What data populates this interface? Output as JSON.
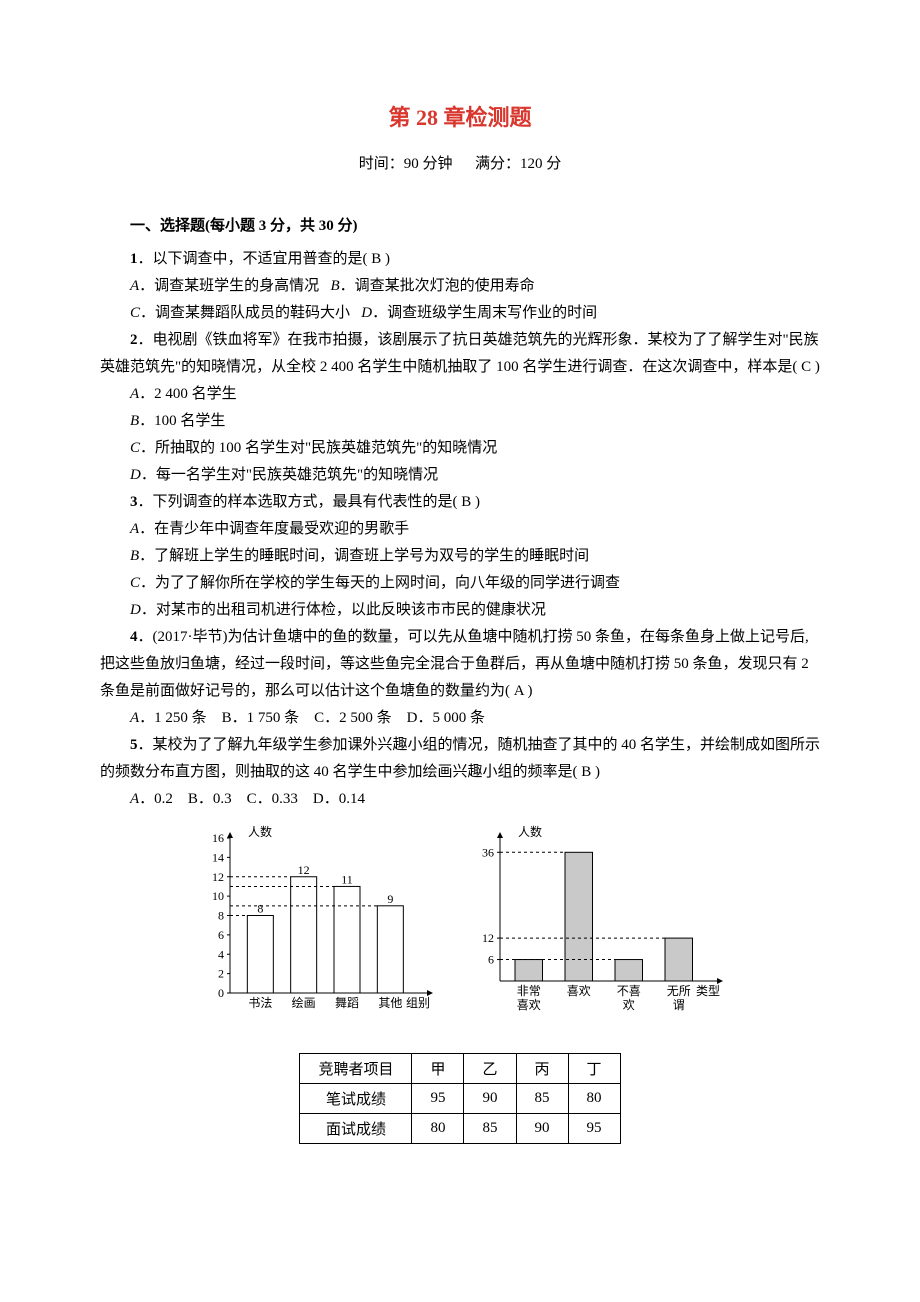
{
  "title": {
    "text": "第 28 章检测题",
    "color": "#d9362e"
  },
  "meta": {
    "time_label": "时间：",
    "time_value": "90 分钟",
    "score_label": "满分：",
    "score_value": "120 分"
  },
  "section1": {
    "header": "一、选择题(每小题 3 分，共 30 分)"
  },
  "q1": {
    "num": "1",
    "text": "．以下调查中，不适宜用普查的是( B )",
    "optA": "．调查某班学生的身高情况",
    "optB": "．调查某批次灯泡的使用寿命",
    "optC": "．调查某舞蹈队成员的鞋码大小",
    "optD": "．调查班级学生周末写作业的时间"
  },
  "q2": {
    "num": "2",
    "text": "．电视剧《铁血将军》在我市拍摄，该剧展示了抗日英雄范筑先的光辉形象．某校为了了解学生对\"民族英雄范筑先\"的知晓情况，从全校 2 400 名学生中随机抽取了 100 名学生进行调查．在这次调查中，样本是( C )",
    "optA": "．2 400 名学生",
    "optB": "．100 名学生",
    "optC": "．所抽取的 100 名学生对\"民族英雄范筑先\"的知晓情况",
    "optD": "．每一名学生对\"民族英雄范筑先\"的知晓情况"
  },
  "q3": {
    "num": "3",
    "text": "．下列调查的样本选取方式，最具有代表性的是( B )",
    "optA": "．在青少年中调查年度最受欢迎的男歌手",
    "optB": "．了解班上学生的睡眠时间，调查班上学号为双号的学生的睡眠时间",
    "optC": "．为了了解你所在学校的学生每天的上网时间，向八年级的同学进行调查",
    "optD": "．对某市的出租司机进行体检，以此反映该市市民的健康状况"
  },
  "q4": {
    "num": "4",
    "text": "．(2017·毕节)为估计鱼塘中的鱼的数量，可以先从鱼塘中随机打捞 50 条鱼，在每条鱼身上做上记号后,把这些鱼放归鱼塘，经过一段时间，等这些鱼完全混合于鱼群后，再从鱼塘中随机打捞 50 条鱼，发现只有 2 条鱼是前面做好记号的，那么可以估计这个鱼塘鱼的数量约为( A )",
    "opts": "．1 250 条　B．1 750 条　C．2 500 条　D．5 000 条"
  },
  "q5": {
    "num": "5",
    "text": "．某校为了了解九年级学生参加课外兴趣小组的情况，随机抽查了其中的 40 名学生，并绘制成如图所示的频数分布直方图，则抽取的这 40 名学生中参加绘画兴趣小组的频率是( B )",
    "opts": "．0.2　B．0.3　C．0.33　D．0.14"
  },
  "chart1": {
    "type": "bar",
    "ylabel": "人数",
    "xlabel": "组别",
    "ymax": 16,
    "yticks": [
      0,
      2,
      4,
      6,
      8,
      10,
      12,
      14,
      16
    ],
    "categories": [
      "书法",
      "绘画",
      "舞蹈",
      "其他"
    ],
    "values": [
      8,
      12,
      11,
      9
    ],
    "bar_fill": "#ffffff",
    "bar_stroke": "#000000",
    "axis_color": "#000000",
    "dash_color": "#000000",
    "font_size": 12
  },
  "chart2": {
    "type": "bar",
    "ylabel": "人数",
    "xlabel": "类型",
    "yticks_shown": [
      6,
      12,
      36
    ],
    "categories": [
      "非常喜欢",
      "喜欢",
      "不喜欢",
      "无所谓"
    ],
    "values": [
      6,
      36,
      6,
      12
    ],
    "bar_fill": "#c9c9c9",
    "bar_stroke": "#000000",
    "axis_color": "#000000",
    "dash_color": "#000000",
    "font_size": 12
  },
  "table": {
    "header": [
      "竞聘者项目",
      "甲",
      "乙",
      "丙",
      "丁"
    ],
    "rows": [
      [
        "笔试成绩",
        "95",
        "90",
        "85",
        "80"
      ],
      [
        "面试成绩",
        "80",
        "85",
        "90",
        "95"
      ]
    ]
  }
}
